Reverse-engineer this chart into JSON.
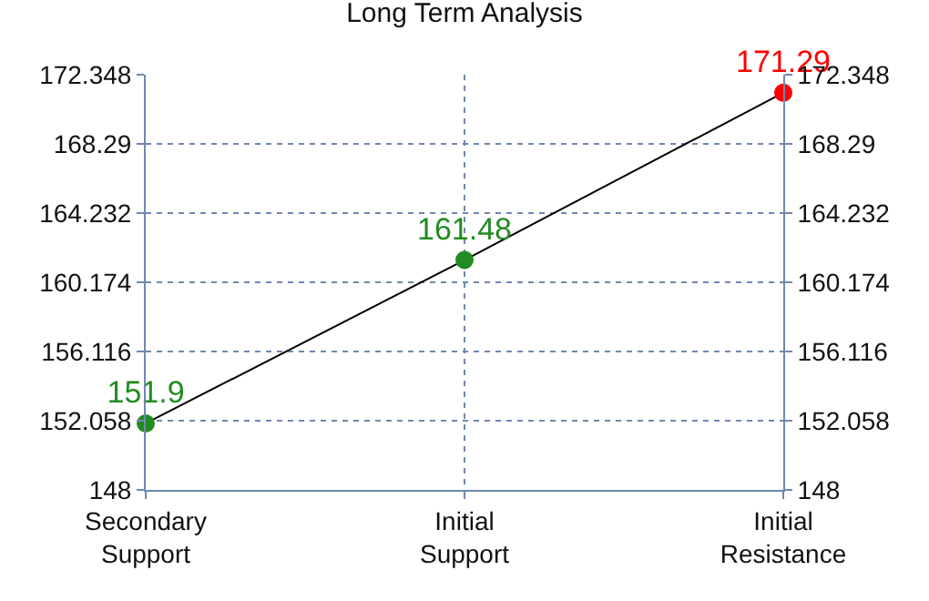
{
  "chart_data": {
    "type": "line",
    "title": "Long Term Analysis",
    "categories": [
      "Secondary\nSupport",
      "Initial\nSupport",
      "Initial\nResistance"
    ],
    "series": [
      {
        "color": "#000000",
        "colors": [
          "#228b22",
          "#228b22",
          "#ff0000"
        ],
        "values": [
          151.9,
          161.48,
          171.29
        ]
      }
    ],
    "data_labels": true,
    "marker": "circle",
    "line_style": "solid",
    "ylim": [
      148,
      172.348
    ],
    "yticks": [
      148,
      152.058,
      156.116,
      160.174,
      164.232,
      168.29,
      172.348
    ],
    "y2lim": [
      148,
      172.348
    ],
    "y2ticks": [
      148,
      152.058,
      156.116,
      160.174,
      164.232,
      168.29,
      172.348
    ],
    "grid": true,
    "legend": false
  }
}
